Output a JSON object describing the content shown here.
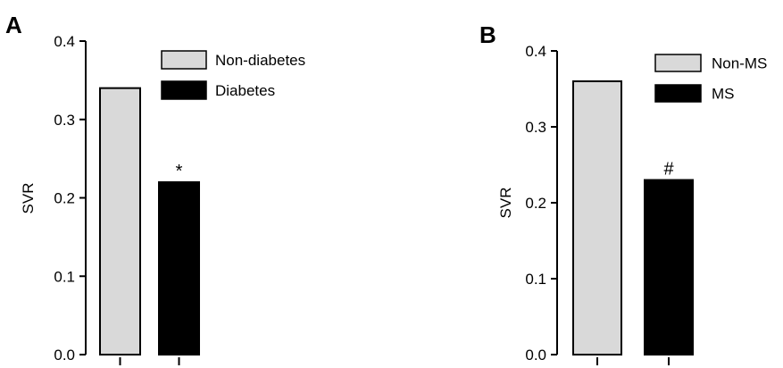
{
  "chart_data": [
    {
      "type": "bar",
      "panel": "A",
      "categories": [
        "Non-diabetes",
        "Diabetes"
      ],
      "values": [
        0.34,
        0.22
      ],
      "colors": [
        "#d9d9d9",
        "#000000"
      ],
      "annotations": [
        "",
        "*"
      ],
      "legend": [
        "Non-diabetes",
        "Diabetes"
      ],
      "ylabel": "SVR",
      "ylim": [
        0,
        0.4
      ],
      "yticks": [
        "0.0",
        "0.1",
        "0.2",
        "0.3",
        "0.4"
      ],
      "grid": false,
      "legend_position": "top-right"
    },
    {
      "type": "bar",
      "panel": "B",
      "categories": [
        "Non-MS",
        "MS"
      ],
      "values": [
        0.36,
        0.23
      ],
      "colors": [
        "#d9d9d9",
        "#000000"
      ],
      "annotations": [
        "",
        "#"
      ],
      "legend": [
        "Non-MS",
        "MS"
      ],
      "ylabel": "SVR",
      "ylim": [
        0,
        0.4
      ],
      "yticks": [
        "0.0",
        "0.1",
        "0.2",
        "0.3",
        "0.4"
      ],
      "grid": false,
      "legend_position": "top-right"
    }
  ]
}
